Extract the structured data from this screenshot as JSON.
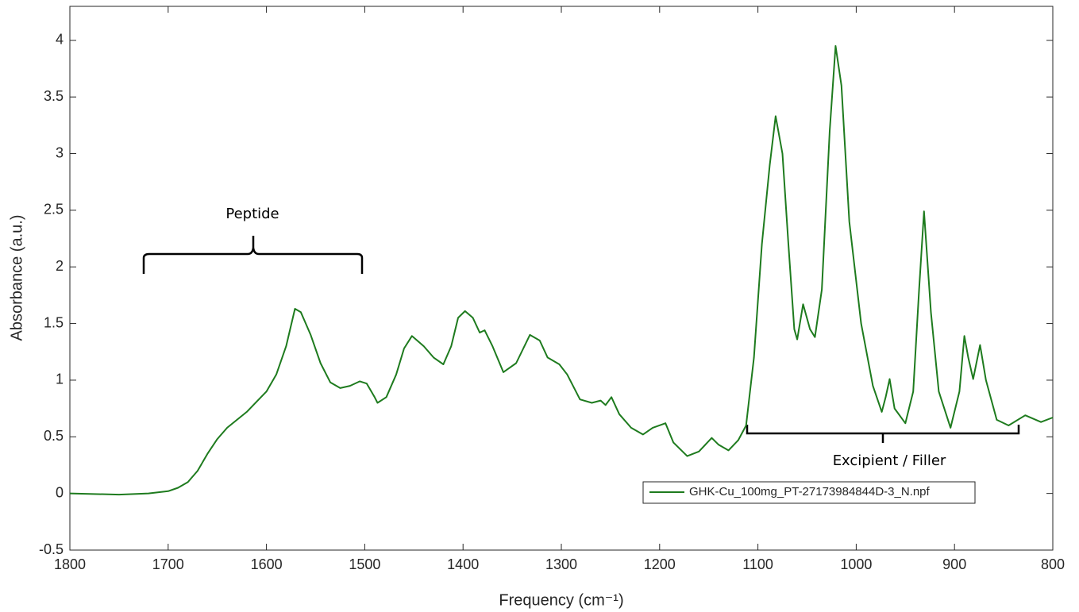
{
  "chart_data": {
    "type": "line",
    "x_label": "Frequency (cm⁻¹)",
    "y_label": "Absorbance (a.u.)",
    "annotations": [
      "Peptide",
      "Excipient / Filler"
    ],
    "xlim": [
      1800,
      800
    ],
    "ylim": [
      -0.5,
      4.3
    ],
    "xticks": [
      1800,
      1700,
      1600,
      1500,
      1400,
      1300,
      1200,
      1100,
      1000,
      900,
      800
    ],
    "yticks": [
      -0.5,
      0,
      0.5,
      1,
      1.5,
      2,
      2.5,
      3,
      3.5,
      4
    ],
    "legend_position": "lower right",
    "series": [
      {
        "name": "GHK-Cu_100mg_PT-27173984844D-3_N.npf",
        "color": "#1e7b1e",
        "x": [
          1800,
          1750,
          1720,
          1700,
          1690,
          1680,
          1670,
          1660,
          1650,
          1640,
          1620,
          1600,
          1590,
          1580,
          1571,
          1565,
          1555,
          1545,
          1535,
          1525,
          1515,
          1505,
          1498,
          1490,
          1487,
          1478,
          1468,
          1460,
          1452,
          1440,
          1430,
          1420,
          1412,
          1405,
          1398,
          1390,
          1383,
          1378,
          1370,
          1359,
          1346,
          1332,
          1322,
          1314,
          1302,
          1294,
          1281,
          1269,
          1260,
          1255,
          1249,
          1241,
          1229,
          1217,
          1207,
          1194,
          1186,
          1172,
          1160,
          1147,
          1140,
          1130,
          1120,
          1112,
          1104,
          1096,
          1088,
          1082,
          1075,
          1069,
          1063,
          1060,
          1054,
          1047,
          1042,
          1035,
          1027,
          1021,
          1015,
          1007,
          995,
          983,
          974,
          970,
          966,
          961,
          950,
          942,
          936,
          931,
          924,
          916,
          904,
          895,
          890,
          886,
          881,
          874,
          868,
          857,
          845,
          828,
          812,
          800
        ],
        "values": [
          0,
          -0.01,
          0,
          0.02,
          0.05,
          0.1,
          0.2,
          0.35,
          0.48,
          0.58,
          0.72,
          0.9,
          1.05,
          1.3,
          1.63,
          1.6,
          1.4,
          1.15,
          0.98,
          0.93,
          0.95,
          0.99,
          0.97,
          0.85,
          0.8,
          0.85,
          1.05,
          1.28,
          1.39,
          1.3,
          1.2,
          1.14,
          1.3,
          1.55,
          1.61,
          1.55,
          1.42,
          1.44,
          1.3,
          1.07,
          1.15,
          1.4,
          1.35,
          1.2,
          1.14,
          1.05,
          0.83,
          0.8,
          0.82,
          0.78,
          0.85,
          0.7,
          0.58,
          0.52,
          0.58,
          0.62,
          0.45,
          0.33,
          0.37,
          0.49,
          0.43,
          0.38,
          0.47,
          0.6,
          1.2,
          2.2,
          2.9,
          3.33,
          3.0,
          2.2,
          1.45,
          1.36,
          1.67,
          1.45,
          1.38,
          1.8,
          3.2,
          3.95,
          3.6,
          2.4,
          1.5,
          0.95,
          0.72,
          0.85,
          1.01,
          0.75,
          0.62,
          0.9,
          1.8,
          2.49,
          1.6,
          0.9,
          0.58,
          0.9,
          1.39,
          1.2,
          1.01,
          1.31,
          1.0,
          0.65,
          0.6,
          0.69,
          0.63,
          0.67
        ]
      }
    ]
  }
}
